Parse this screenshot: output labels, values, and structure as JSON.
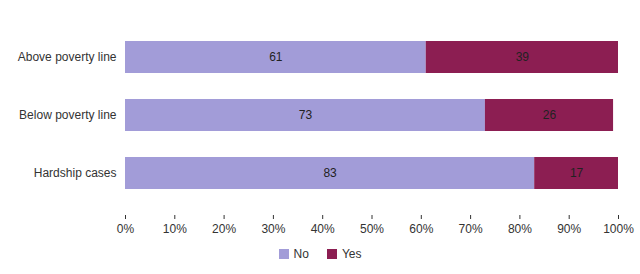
{
  "chart_data": {
    "type": "bar",
    "orientation": "horizontal",
    "stacked": true,
    "data_labels": true,
    "grid": false,
    "categories": [
      "Above poverty line",
      "Below poverty line",
      "Hardship cases"
    ],
    "series": [
      {
        "name": "No",
        "color": "#a29cd8",
        "values": [
          61,
          73,
          83
        ]
      },
      {
        "name": "Yes",
        "color": "#8c1e52",
        "values": [
          39,
          26,
          17
        ]
      }
    ],
    "xlim": [
      0,
      100
    ],
    "xticks": [
      {
        "value": 0,
        "label": "0%"
      },
      {
        "value": 10,
        "label": "10%"
      },
      {
        "value": 20,
        "label": "20%"
      },
      {
        "value": 30,
        "label": "30%"
      },
      {
        "value": 40,
        "label": "40%"
      },
      {
        "value": 50,
        "label": "50%"
      },
      {
        "value": 60,
        "label": "60%"
      },
      {
        "value": 70,
        "label": "70%"
      },
      {
        "value": 80,
        "label": "80%"
      },
      {
        "value": 90,
        "label": "90%"
      },
      {
        "value": 100,
        "label": "100%"
      }
    ],
    "legend": "bottom"
  }
}
